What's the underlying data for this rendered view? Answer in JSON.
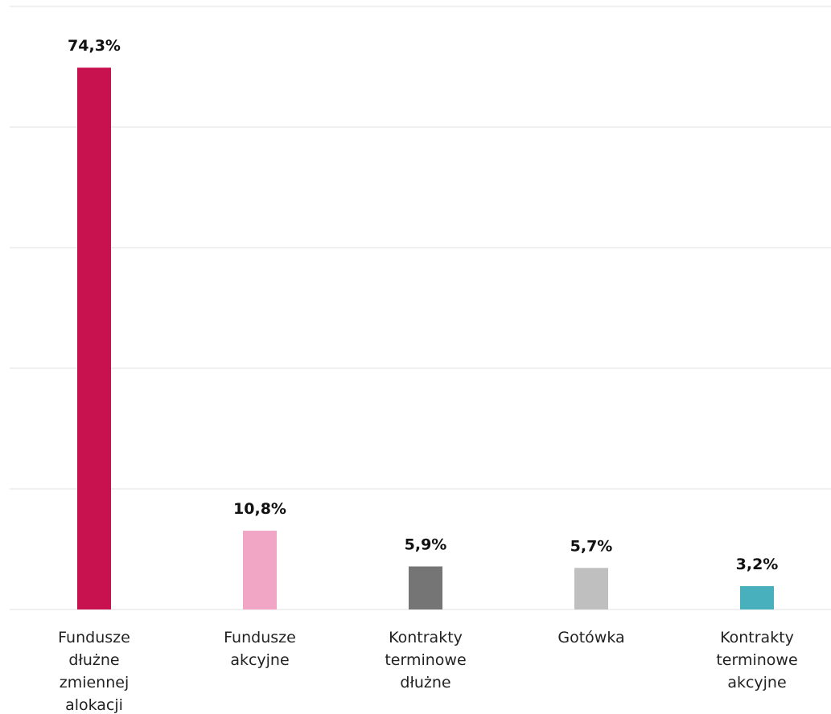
{
  "chart_data": {
    "type": "bar",
    "title": "",
    "xlabel": "",
    "ylabel": "",
    "ylim": [
      0,
      75
    ],
    "grid": true,
    "legend": "none",
    "categories": [
      [
        "Fundusze",
        "dłużne",
        "zmiennej",
        "alokacji"
      ],
      [
        "Fundusze",
        "akcyjne"
      ],
      [
        "Kontrakty",
        "terminowe",
        "dłużne"
      ],
      [
        "Gotówka"
      ],
      [
        "Kontrakty",
        "terminowe",
        "akcyjne"
      ]
    ],
    "values": [
      74.3,
      10.8,
      5.9,
      5.7,
      3.2
    ],
    "value_labels": [
      "74,3%",
      "10,8%",
      "5,9%",
      "5,7%",
      "3,2%"
    ],
    "colors": [
      "#c8114f",
      "#f0a6c4",
      "#757575",
      "#bfbfbf",
      "#48b0bc"
    ],
    "gridline_color": "#ebebeb"
  }
}
